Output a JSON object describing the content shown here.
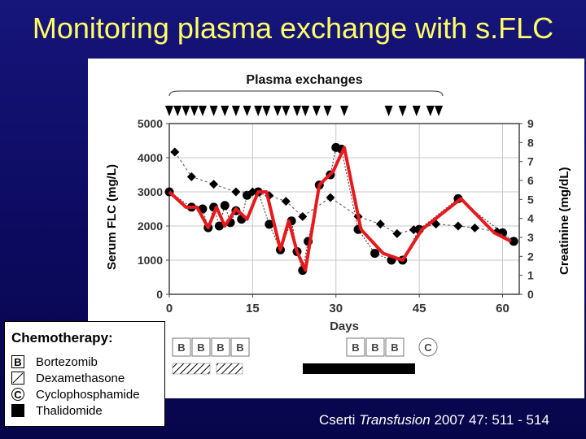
{
  "slide_title": "Monitoring plasma exchange with s.FLC",
  "chart_data": {
    "type": "line",
    "annotation": "Plasma exchanges",
    "xlabel": "Days",
    "ylabel": "Serum FLC (mg/L)",
    "y2label": "Creatinine (mg/dL)",
    "xlim": [
      0,
      63
    ],
    "ylim": [
      0,
      5000
    ],
    "y2lim": [
      0,
      9
    ],
    "x_ticks": [
      0,
      15,
      30,
      45,
      60
    ],
    "y_ticks": [
      0,
      1000,
      2000,
      3000,
      4000,
      5000
    ],
    "y2_ticks": [
      0,
      1,
      2,
      3,
      4,
      5,
      6,
      7,
      8,
      9
    ],
    "plasma_exchange_days": [
      0,
      1.5,
      3,
      4.5,
      6,
      8,
      10,
      12,
      14,
      16,
      17.5,
      19.5,
      21,
      23,
      24.5,
      26.5,
      28.5,
      31.5,
      39.5,
      42,
      44.5,
      47,
      48.5
    ],
    "series": [
      {
        "x": [
          0,
          4,
          6,
          7,
          8,
          9,
          10,
          11,
          12,
          13,
          14,
          16,
          18,
          20,
          22,
          23,
          24,
          25,
          27,
          29,
          30,
          31,
          34,
          37,
          40,
          42,
          45,
          52,
          60,
          62
        ],
        "y": [
          3000,
          2550,
          2500,
          1950,
          2550,
          2000,
          2600,
          2100,
          2450,
          2200,
          2900,
          3000,
          2050,
          1300,
          2150,
          1250,
          700,
          1550,
          3200,
          3500,
          4300,
          4250,
          1900,
          1200,
          1000,
          1000,
          1900,
          2800,
          1800,
          1550
        ]
      },
      {
        "x": [
          1,
          4,
          8,
          12,
          15,
          18,
          21,
          24,
          29,
          34,
          38,
          41,
          44,
          48,
          52,
          55,
          59,
          62
        ],
        "y": [
          7.5,
          6.2,
          5.8,
          5.4,
          5.4,
          5.2,
          4.9,
          4.1,
          5.1,
          4.1,
          3.7,
          3.2,
          3.4,
          3.7,
          3.6,
          3.5,
          3.3,
          2.8
        ]
      }
    ],
    "fit_line": {
      "x": [
        0,
        3,
        5,
        7,
        8.5,
        10,
        12,
        14,
        16,
        17.5,
        20,
        21.5,
        23,
        24.5,
        27,
        29.5,
        31.5,
        34.5,
        38.5,
        42,
        45.5,
        52.5,
        58.5,
        61.5
      ],
      "y": [
        3000,
        2550,
        2550,
        1950,
        2550,
        2000,
        2500,
        2200,
        3000,
        3000,
        1300,
        2150,
        1250,
        700,
        3200,
        3600,
        4300,
        1900,
        1200,
        1000,
        1900,
        2800,
        1800,
        1550
      ]
    }
  },
  "treatment_rows": {
    "bortezomib_row_1": [
      "B",
      "B",
      "B",
      "B"
    ],
    "bortezomib_row_2": [
      "B",
      "B",
      "B"
    ],
    "cyclophosphamide_mark": "C"
  },
  "legend": {
    "title": "Chemotherapy:",
    "items": [
      {
        "symbol": "B",
        "label": "Bortezomib"
      },
      {
        "symbol": "",
        "label": "Dexamethasone"
      },
      {
        "symbol": "C",
        "label": "Cyclophosphamide"
      },
      {
        "symbol": "",
        "label": "Thalidomide"
      }
    ]
  },
  "citation": {
    "authors": "Cserti",
    "journal": "Transfusion",
    "details": "2007 47: 511 - 514"
  }
}
